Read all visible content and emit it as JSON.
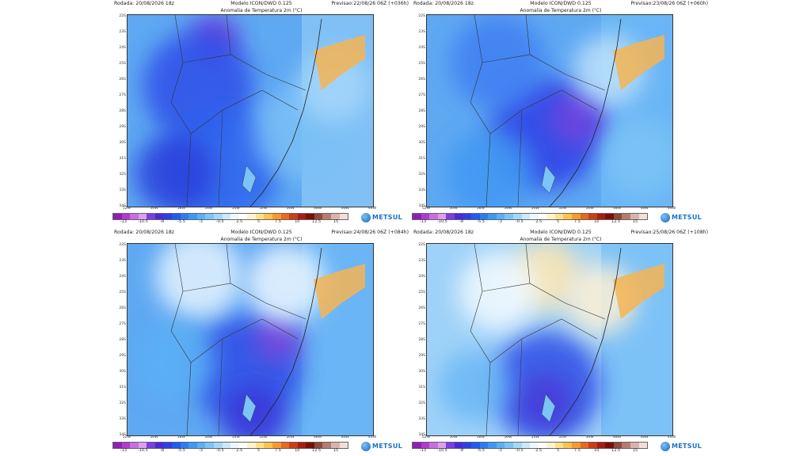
{
  "colors": {
    "scale": [
      "#8f1fb5",
      "#b03bd0",
      "#c86ee0",
      "#dc9ef0",
      "#7a3fe0",
      "#4a2ad8",
      "#2e3fe6",
      "#1f5cf0",
      "#2f7cf2",
      "#3f98f3",
      "#5ab0f5",
      "#7cc4f7",
      "#a4d8fa",
      "#cbe8fc",
      "#eef8ff",
      "#ffffff",
      "#fff2cc",
      "#ffe08a",
      "#ffc24a",
      "#f59a2e",
      "#e66a1f",
      "#cc3d17",
      "#a81d12",
      "#7c0e0a",
      "#8e4a3a",
      "#b57d70",
      "#d9b3aa",
      "#f2ddd8"
    ]
  },
  "colorbar_labels": [
    "-13",
    "-10.5",
    "-8",
    "-5.5",
    "-3",
    "-0.5",
    "2.5",
    "5",
    "7.5",
    "10",
    "12.5",
    "15"
  ],
  "lat_labels": [
    "22S",
    "23S",
    "24S",
    "25S",
    "26S",
    "27S",
    "28S",
    "29S",
    "30S",
    "31S",
    "32S",
    "33S",
    "34S"
  ],
  "lon_labels": [
    "52W",
    "50W",
    "58W",
    "56W",
    "54W",
    "52W",
    "50W",
    "48W",
    "46W",
    "44W"
  ],
  "panels": [
    {
      "run": "Rodada: 20/08/2026 18z",
      "model": "Modelo ICON/DWD 0.125",
      "forecast": "Previsao:22/08/26 06Z (+036h)",
      "subtitle": "Anomalia de Temperatura 2m (°C)",
      "logo": "METSUL"
    },
    {
      "run": "Rodada: 20/08/2026 18z",
      "model": "Modelo ICON/DWD 0.125",
      "forecast": "Previsao:23/08/26 06Z (+060h)",
      "subtitle": "Anomalia de Temperatura 2m (°C)",
      "logo": "METSUL"
    },
    {
      "run": "Rodada: 20/08/2026 18z",
      "model": "Modelo ICON/DWD 0.125",
      "forecast": "Previsao:24/08/26 06Z (+084h)",
      "subtitle": "Anomalia de Temperatura 2m (°C)",
      "logo": "METSUL"
    },
    {
      "run": "Rodada: 20/08/2026 18z",
      "model": "Modelo ICON/DWD 0.125",
      "forecast": "Previsao:25/08/26 06Z (+108h)",
      "subtitle": "Anomalia de Temperatura 2m (°C)",
      "logo": "METSUL"
    }
  ]
}
